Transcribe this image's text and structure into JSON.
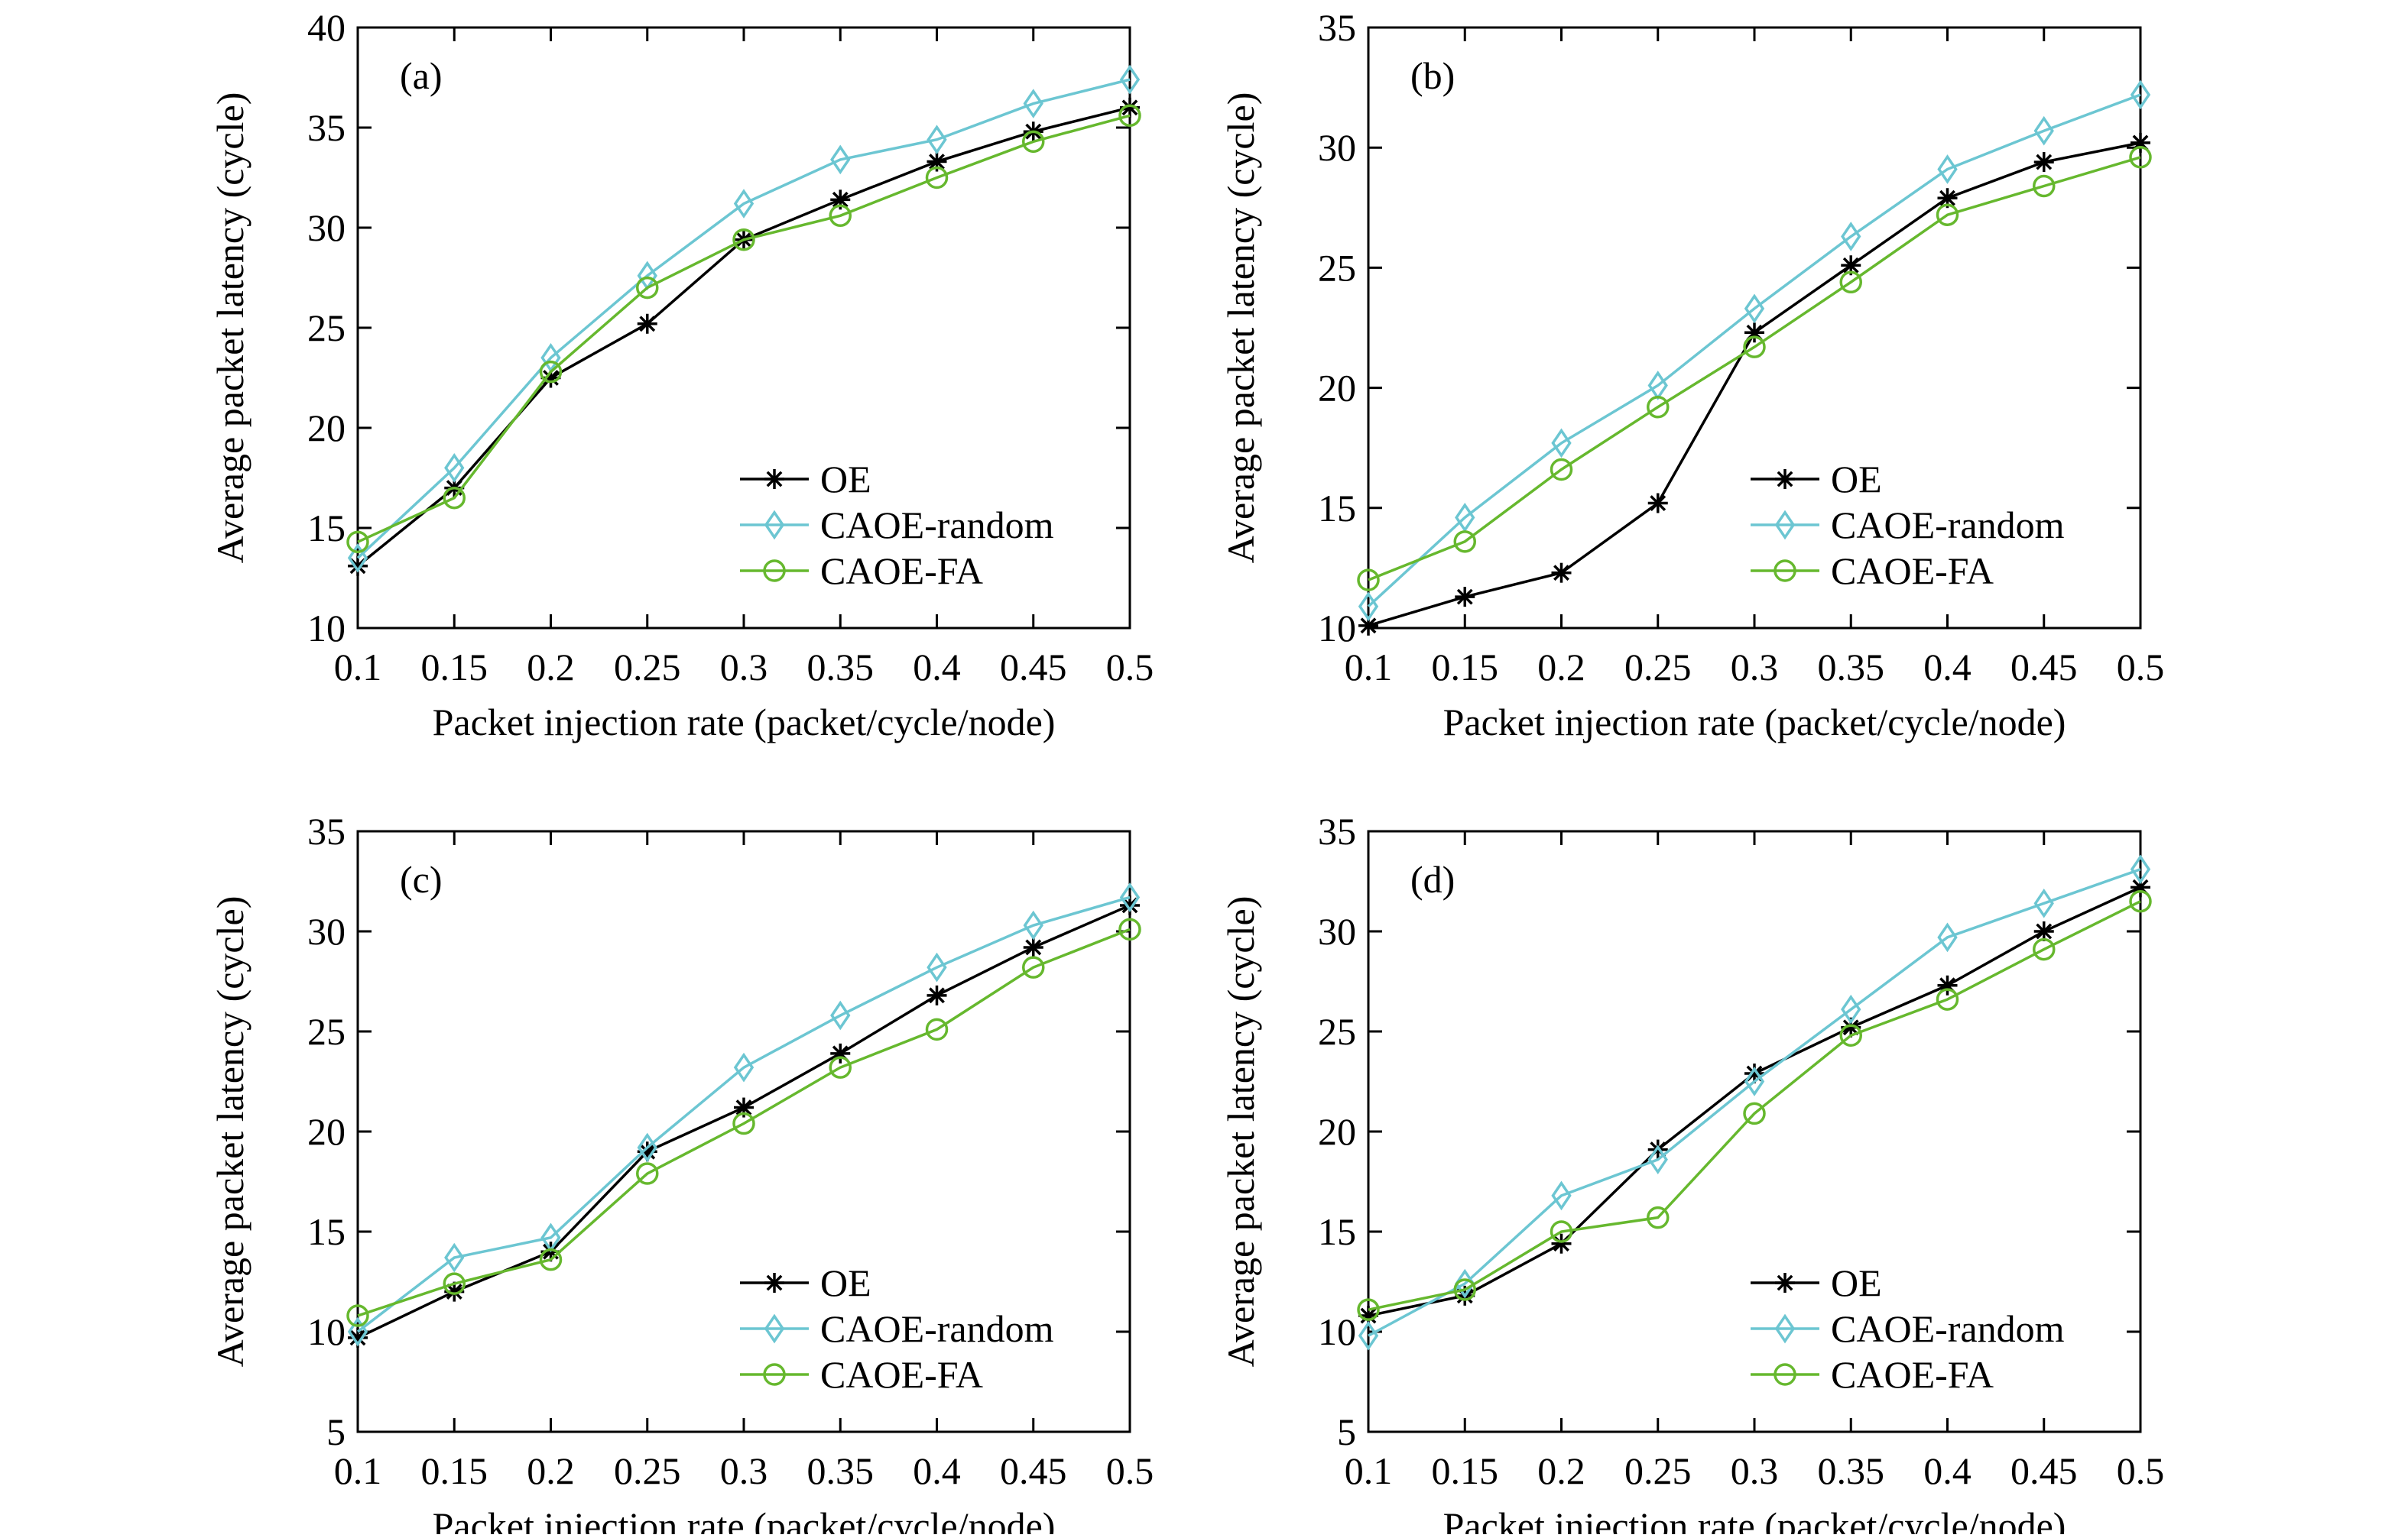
{
  "chart_data": [
    {
      "type": "line",
      "panel_label": "(a)",
      "xlabel": "Packet injection rate (packet/cycle/node)",
      "ylabel": "Average packet latency (cycle)",
      "x": [
        0.1,
        0.15,
        0.2,
        0.25,
        0.3,
        0.35,
        0.4,
        0.45,
        0.5
      ],
      "x_tick_labels": [
        "0.1",
        "0.15",
        "0.2",
        "0.25",
        "0.3",
        "0.35",
        "0.4",
        "0.45",
        "0.5"
      ],
      "xlim": [
        0.1,
        0.5
      ],
      "ylim": [
        10,
        40
      ],
      "y_ticks": [
        10,
        15,
        20,
        25,
        30,
        35,
        40
      ],
      "grid": false,
      "legend_position": "bottom-right",
      "series": [
        {
          "name": "OE",
          "marker": "asterisk",
          "color": "#000000",
          "values": [
            13.1,
            17.0,
            22.5,
            25.2,
            29.4,
            31.4,
            33.3,
            34.8,
            36.0
          ]
        },
        {
          "name": "CAOE-random",
          "marker": "diamond",
          "color": "#6cc6d2",
          "values": [
            13.5,
            18.0,
            23.5,
            27.6,
            31.2,
            33.4,
            34.4,
            36.2,
            37.4
          ]
        },
        {
          "name": "CAOE-FA",
          "marker": "circle",
          "color": "#66b82e",
          "values": [
            14.3,
            16.5,
            22.8,
            27.0,
            29.4,
            30.6,
            32.5,
            34.3,
            35.6
          ]
        }
      ]
    },
    {
      "type": "line",
      "panel_label": "(b)",
      "xlabel": "Packet injection rate (packet/cycle/node)",
      "ylabel": "Average packet latency (cycle)",
      "x": [
        0.1,
        0.15,
        0.2,
        0.25,
        0.3,
        0.35,
        0.4,
        0.45,
        0.5
      ],
      "x_tick_labels": [
        "0.1",
        "0.15",
        "0.2",
        "0.25",
        "0.3",
        "0.35",
        "0.4",
        "0.45",
        "0.5"
      ],
      "xlim": [
        0.1,
        0.5
      ],
      "ylim": [
        10,
        35
      ],
      "y_ticks": [
        10,
        15,
        20,
        25,
        30,
        35
      ],
      "grid": false,
      "legend_position": "bottom-right",
      "series": [
        {
          "name": "OE",
          "marker": "asterisk",
          "color": "#000000",
          "values": [
            10.1,
            11.3,
            12.3,
            15.2,
            22.3,
            25.1,
            27.9,
            29.4,
            30.2
          ]
        },
        {
          "name": "CAOE-random",
          "marker": "diamond",
          "color": "#6cc6d2",
          "values": [
            10.9,
            14.6,
            17.7,
            20.1,
            23.3,
            26.3,
            29.1,
            30.7,
            32.2
          ]
        },
        {
          "name": "CAOE-FA",
          "marker": "circle",
          "color": "#66b82e",
          "values": [
            12.0,
            13.6,
            16.6,
            19.2,
            21.7,
            24.4,
            27.2,
            28.4,
            29.6
          ]
        }
      ]
    },
    {
      "type": "line",
      "panel_label": "(c)",
      "xlabel": "Packet injection rate (packet/cycle/node)",
      "ylabel": "Average packet latency (cycle)",
      "x": [
        0.1,
        0.15,
        0.2,
        0.25,
        0.3,
        0.35,
        0.4,
        0.45,
        0.5
      ],
      "x_tick_labels": [
        "0.1",
        "0.15",
        "0.2",
        "0.25",
        "0.3",
        "0.35",
        "0.4",
        "0.45",
        "0.5"
      ],
      "xlim": [
        0.1,
        0.5
      ],
      "ylim": [
        5,
        35
      ],
      "y_ticks": [
        5,
        10,
        15,
        20,
        25,
        30,
        35
      ],
      "grid": false,
      "legend_position": "bottom-right",
      "series": [
        {
          "name": "OE",
          "marker": "asterisk",
          "color": "#000000",
          "values": [
            9.7,
            12.0,
            14.0,
            19.0,
            21.2,
            23.9,
            26.8,
            29.2,
            31.3
          ]
        },
        {
          "name": "CAOE-random",
          "marker": "diamond",
          "color": "#6cc6d2",
          "values": [
            10.0,
            13.7,
            14.7,
            19.2,
            23.2,
            25.8,
            28.2,
            30.3,
            31.7
          ]
        },
        {
          "name": "CAOE-FA",
          "marker": "circle",
          "color": "#66b82e",
          "values": [
            10.8,
            12.4,
            13.6,
            17.9,
            20.4,
            23.2,
            25.1,
            28.2,
            30.1
          ]
        }
      ]
    },
    {
      "type": "line",
      "panel_label": "(d)",
      "xlabel": "Packet injection rate (packet/cycle/node)",
      "ylabel": "Average packet latency (cycle)",
      "x": [
        0.1,
        0.15,
        0.2,
        0.25,
        0.3,
        0.35,
        0.4,
        0.45,
        0.5
      ],
      "x_tick_labels": [
        "0.1",
        "0.15",
        "0.2",
        "0.25",
        "0.3",
        "0.35",
        "0.4",
        "0.45",
        "0.5"
      ],
      "xlim": [
        0.1,
        0.5
      ],
      "ylim": [
        5,
        35
      ],
      "y_ticks": [
        5,
        10,
        15,
        20,
        25,
        30,
        35
      ],
      "grid": false,
      "legend_position": "bottom-right",
      "series": [
        {
          "name": "OE",
          "marker": "asterisk",
          "color": "#000000",
          "values": [
            10.8,
            11.8,
            14.4,
            19.1,
            22.9,
            25.2,
            27.3,
            30.0,
            32.2
          ]
        },
        {
          "name": "CAOE-random",
          "marker": "diamond",
          "color": "#6cc6d2",
          "values": [
            9.8,
            12.4,
            16.8,
            18.6,
            22.5,
            26.1,
            29.7,
            31.4,
            33.1
          ]
        },
        {
          "name": "CAOE-FA",
          "marker": "circle",
          "color": "#66b82e",
          "values": [
            11.1,
            12.1,
            15.0,
            15.7,
            20.9,
            24.8,
            26.6,
            29.1,
            31.5
          ]
        }
      ]
    }
  ]
}
